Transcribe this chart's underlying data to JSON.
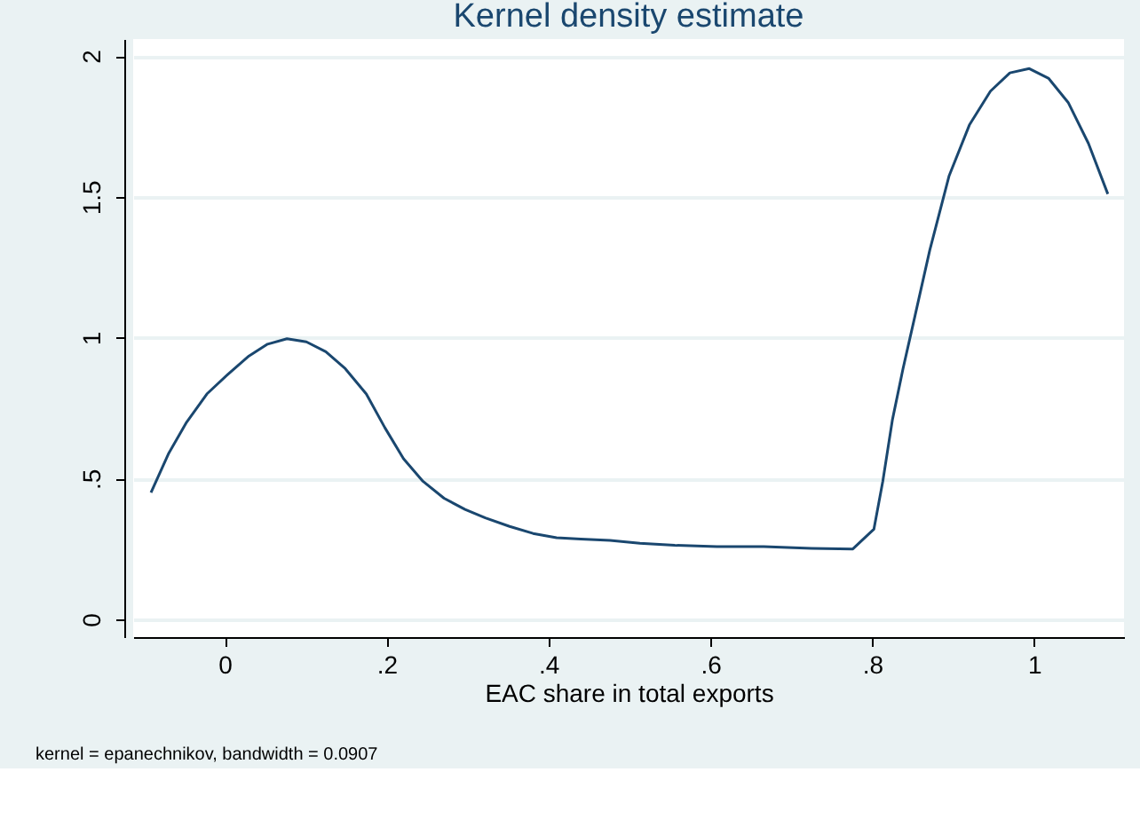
{
  "chart_data": {
    "type": "line",
    "title": "Kernel density estimate",
    "xlabel": "EAC share in total exports",
    "annotations": [
      "kernel = epanechnikov, bandwidth = 0.0907"
    ],
    "x": [
      -0.091,
      -0.069,
      -0.047,
      -0.022,
      0.004,
      0.03,
      0.053,
      0.077,
      0.101,
      0.125,
      0.149,
      0.175,
      0.198,
      0.221,
      0.245,
      0.271,
      0.297,
      0.322,
      0.352,
      0.381,
      0.41,
      0.44,
      0.476,
      0.513,
      0.556,
      0.608,
      0.666,
      0.725,
      0.776,
      0.802,
      0.813,
      0.825,
      0.838,
      0.853,
      0.871,
      0.895,
      0.92,
      0.946,
      0.97,
      0.994,
      1.018,
      1.042,
      1.067,
      1.091
    ],
    "series": [
      {
        "color": "#1a476f",
        "values": [
          0.45,
          0.59,
          0.7,
          0.8,
          0.87,
          0.935,
          0.977,
          0.996,
          0.985,
          0.95,
          0.89,
          0.8,
          0.68,
          0.57,
          0.49,
          0.43,
          0.39,
          0.36,
          0.33,
          0.305,
          0.29,
          0.285,
          0.28,
          0.27,
          0.263,
          0.258,
          0.258,
          0.252,
          0.25,
          0.32,
          0.49,
          0.71,
          0.89,
          1.08,
          1.31,
          1.575,
          1.755,
          1.875,
          1.94,
          1.955,
          1.92,
          1.835,
          1.69,
          1.51
        ]
      }
    ],
    "xlim": [
      -0.113,
      1.111
    ],
    "xticks": [
      0,
      {
        "value": 0.2,
        "label": ".2"
      },
      {
        "value": 0.4,
        "label": ".4"
      },
      {
        "value": 0.6,
        "label": ".6"
      },
      {
        "value": 0.8,
        "label": ".8"
      },
      1
    ],
    "ylim": [
      -0.063,
      2.06
    ],
    "yticks": [
      0,
      {
        "value": 0.5,
        "label": ".5"
      },
      1,
      1.5,
      2
    ],
    "grid": "y",
    "marker": "none",
    "line_style": "solid"
  }
}
